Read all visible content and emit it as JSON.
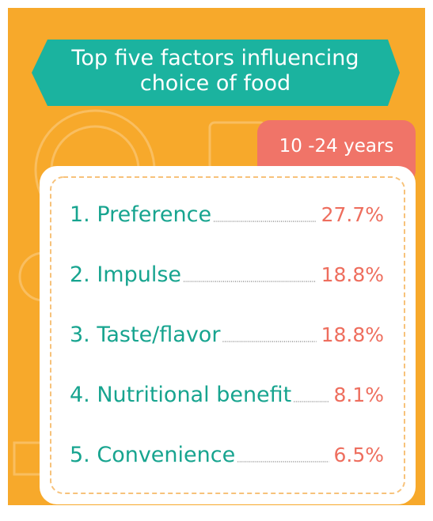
{
  "title": {
    "line1": "Top five factors influencing",
    "line2": "choice of food"
  },
  "age_group": "10 -24 years",
  "items": [
    {
      "label": "1. Preference",
      "value": "27.7%"
    },
    {
      "label": "2. Impulse",
      "value": "18.8%"
    },
    {
      "label": "3. Taste/flavor",
      "value": "18.8%"
    },
    {
      "label": "4. Nutritional benefit",
      "value": "8.1%"
    },
    {
      "label": "5. Convenience",
      "value": "6.5%"
    }
  ]
}
